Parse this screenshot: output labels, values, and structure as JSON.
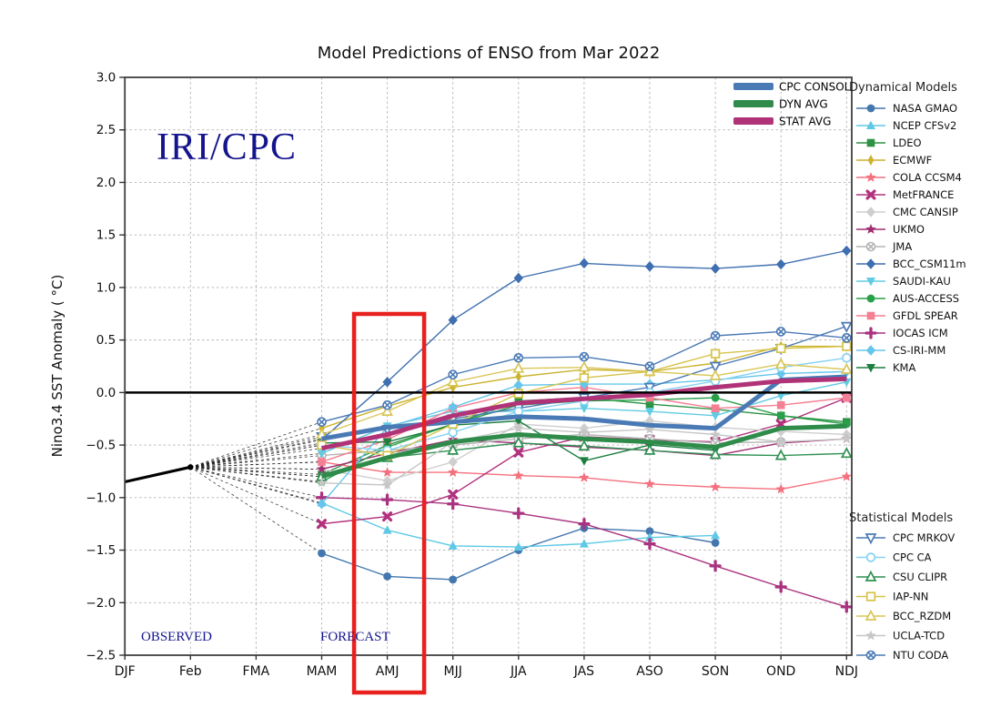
{
  "title": "Model Predictions of ENSO from Mar 2022",
  "watermark": "IRI/CPC",
  "annotations": {
    "observed": "OBSERVED",
    "forecast": "FORECAST"
  },
  "axes": {
    "ylabel": "Nino3.4 SST Anomaly ( °C)",
    "ytick_labels": [
      "3.0",
      "2.5",
      "2.0",
      "1.5",
      "1.0",
      "0.5",
      "0.0",
      "−0.5",
      "−1.0",
      "−1.5",
      "−2.0",
      "−2.5"
    ],
    "ytick_values": [
      3.0,
      2.5,
      2.0,
      1.5,
      1.0,
      0.5,
      0.0,
      -0.5,
      -1.0,
      -1.5,
      -2.0,
      -2.5
    ]
  },
  "legend": {
    "dynamical_header": "Dynamical Models",
    "statistical_header": "Statistical Models"
  },
  "chart_data": {
    "type": "line",
    "title": "Model Predictions of ENSO from Mar 2022",
    "xlabel": "",
    "ylabel": "Nino3.4 SST Anomaly ( °C)",
    "ylim": [
      -2.5,
      3.0
    ],
    "grid": true,
    "x_categories": [
      "DJF",
      "Feb",
      "FMA",
      "MAM",
      "AMJ",
      "MJJ",
      "JJA",
      "JAS",
      "ASO",
      "SON",
      "OND",
      "NDJ"
    ],
    "forecast_start_category": "MAM",
    "observed": {
      "categories": [
        "DJF",
        "Feb"
      ],
      "values": [
        -0.85,
        -0.71
      ],
      "color": "#000000"
    },
    "highlight_box": {
      "category": "AMJ",
      "color": "#e8201e"
    },
    "summary_series": [
      {
        "name": "CPC CONSOL",
        "color": "#4a7ab5",
        "values": [
          -0.44,
          -0.33,
          -0.28,
          -0.23,
          -0.25,
          -0.31,
          -0.34,
          0.12,
          0.15
        ]
      },
      {
        "name": "DYN AVG",
        "color": "#2e8b4a",
        "values": [
          -0.8,
          -0.62,
          -0.47,
          -0.4,
          -0.44,
          -0.47,
          -0.52,
          -0.34,
          -0.32
        ]
      },
      {
        "name": "STAT AVG",
        "color": "#b03277",
        "values": [
          -0.53,
          -0.4,
          -0.22,
          -0.1,
          -0.06,
          -0.02,
          0.05,
          0.11,
          0.13
        ]
      }
    ],
    "dynamical_models": [
      {
        "name": "NASA GMAO",
        "color": "#4377ae",
        "marker": "circle",
        "values": [
          -1.53,
          -1.75,
          -1.78,
          -1.5,
          -1.29,
          -1.32,
          -1.43,
          null,
          null
        ]
      },
      {
        "name": "NCEP CFSv2",
        "color": "#5ec8e5",
        "marker": "triangle-up",
        "values": [
          -1.05,
          -1.31,
          -1.46,
          -1.47,
          -1.44,
          -1.38,
          -1.36,
          null,
          null
        ]
      },
      {
        "name": "LDEO",
        "color": "#2e9245",
        "marker": "square",
        "values": [
          -0.78,
          -0.5,
          -0.3,
          -0.08,
          -0.05,
          -0.11,
          -0.16,
          -0.22,
          -0.28
        ]
      },
      {
        "name": "ECMWF",
        "color": "#ccb22e",
        "marker": "thin-diamond",
        "values": [
          -0.34,
          -0.13,
          0.05,
          0.15,
          0.22,
          0.2,
          0.28,
          0.44,
          0.44
        ]
      },
      {
        "name": "COLA CCSM4",
        "color": "#f4707e",
        "marker": "star",
        "values": [
          -0.66,
          -0.76,
          -0.76,
          -0.79,
          -0.81,
          -0.87,
          -0.9,
          -0.92,
          -0.8
        ]
      },
      {
        "name": "MetFRANCE",
        "color": "#b2307d",
        "marker": "x",
        "values": [
          -1.25,
          -1.18,
          -0.97,
          -0.57,
          -0.42,
          -0.45,
          -0.47,
          -0.3,
          -0.05
        ]
      },
      {
        "name": "CMC CANSIP",
        "color": "#cfcfcf",
        "marker": "diamond",
        "values": [
          -0.73,
          -0.84,
          -0.66,
          -0.3,
          -0.34,
          -0.27,
          -0.33,
          -0.37,
          -0.4
        ]
      },
      {
        "name": "UKMO",
        "color": "#a02d72",
        "marker": "star",
        "values": [
          -0.73,
          -0.58,
          -0.45,
          -0.48,
          -0.52,
          -0.55,
          -0.6,
          -0.48,
          -0.44
        ]
      },
      {
        "name": "JMA",
        "color": "#b5b5b5",
        "marker": "circle-x",
        "values": [
          -0.6,
          -0.55,
          -0.5,
          -0.44,
          -0.4,
          -0.44,
          -0.48,
          -0.47,
          null
        ]
      },
      {
        "name": "BCC_CSM11m",
        "color": "#3f6fb0",
        "marker": "diamond",
        "values": [
          -0.45,
          0.1,
          0.69,
          1.09,
          1.23,
          1.2,
          1.18,
          1.22,
          1.35
        ]
      },
      {
        "name": "SAUDI-KAU",
        "color": "#62cbe2",
        "marker": "triangle-down",
        "values": [
          -0.58,
          -0.32,
          -0.18,
          -0.18,
          -0.15,
          -0.18,
          -0.22,
          -0.03,
          0.1
        ]
      },
      {
        "name": "AUS-ACCESS",
        "color": "#28a04a",
        "marker": "circle",
        "values": [
          -0.85,
          -0.52,
          -0.3,
          -0.12,
          -0.08,
          -0.07,
          -0.05,
          -0.22,
          -0.3
        ]
      },
      {
        "name": "GFDL SPEAR",
        "color": "#f57f93",
        "marker": "square",
        "values": [
          -0.66,
          -0.45,
          -0.15,
          0.0,
          0.05,
          -0.05,
          -0.15,
          -0.12,
          -0.05
        ]
      },
      {
        "name": "IOCAS ICM",
        "color": "#aa3380",
        "marker": "plus",
        "values": [
          -1.0,
          -1.02,
          -1.06,
          -1.15,
          -1.25,
          -1.44,
          -1.65,
          -1.85,
          -2.04
        ]
      },
      {
        "name": "CS-IRI-MM",
        "color": "#66c5ec",
        "marker": "diamond",
        "values": [
          -1.06,
          -0.33,
          -0.14,
          0.07,
          0.08,
          0.08,
          0.12,
          0.18,
          0.2
        ]
      },
      {
        "name": "KMA",
        "color": "#1b7f3f",
        "marker": "triangle-down",
        "values": [
          -0.48,
          -0.47,
          -0.31,
          -0.27,
          -0.65,
          -0.5,
          -0.55,
          null,
          null
        ]
      }
    ],
    "statistical_models": [
      {
        "name": "CPC MRKOV",
        "color": "#4a7ab5",
        "marker": "triangle-down-open",
        "values": [
          -0.42,
          -0.35,
          -0.25,
          -0.15,
          -0.05,
          0.05,
          0.25,
          0.42,
          0.63
        ]
      },
      {
        "name": "CPC CA",
        "color": "#86d2f2",
        "marker": "circle-open",
        "values": [
          -0.5,
          -0.55,
          -0.38,
          -0.18,
          -0.08,
          0.0,
          0.11,
          0.24,
          0.33
        ]
      },
      {
        "name": "CSU CLIPR",
        "color": "#2f9152",
        "marker": "triangle-up-open",
        "values": [
          -0.8,
          -0.62,
          -0.55,
          -0.48,
          -0.51,
          -0.55,
          -0.59,
          -0.6,
          -0.58
        ]
      },
      {
        "name": "IAP-NN",
        "color": "#d6c34a",
        "marker": "square-open",
        "values": [
          -0.5,
          -0.6,
          -0.3,
          -0.01,
          0.14,
          0.2,
          0.37,
          0.42,
          0.44
        ]
      },
      {
        "name": "BCC_RZDM",
        "color": "#d9c657",
        "marker": "triangle-up-open",
        "values": [
          -0.4,
          -0.18,
          0.1,
          0.23,
          0.24,
          0.2,
          0.16,
          0.27,
          0.22
        ]
      },
      {
        "name": "UCLA-TCD",
        "color": "#c6c6c6",
        "marker": "star",
        "values": [
          -0.86,
          -0.88,
          -0.47,
          -0.34,
          -0.38,
          -0.35,
          -0.4,
          -0.47,
          -0.44
        ]
      },
      {
        "name": "NTU CODA",
        "color": "#4a7ab5",
        "marker": "circle-x",
        "values": [
          -0.28,
          -0.12,
          0.17,
          0.33,
          0.34,
          0.25,
          0.54,
          0.58,
          0.52
        ]
      }
    ]
  }
}
